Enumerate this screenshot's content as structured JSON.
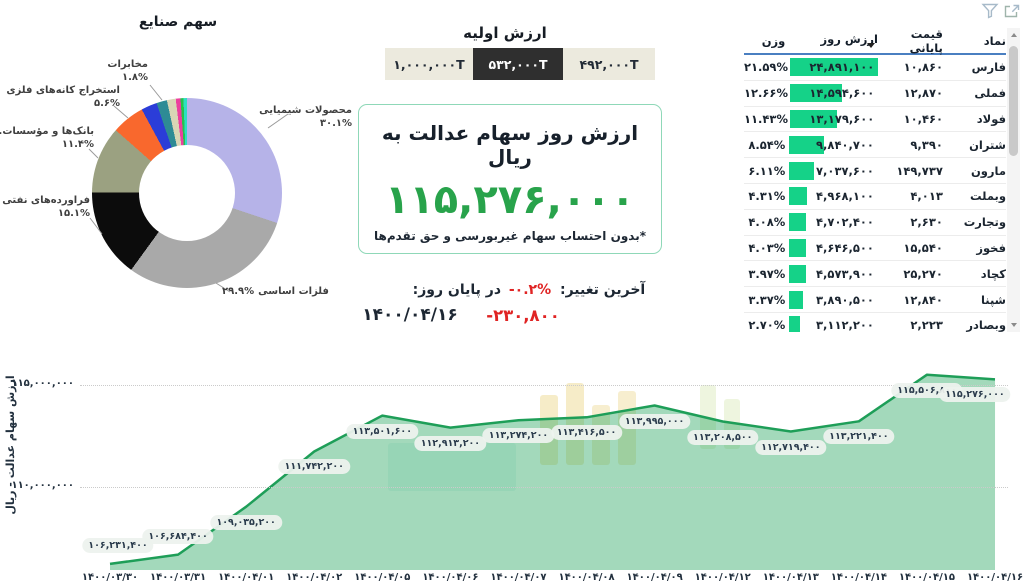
{
  "toolbar": {
    "filter_icon": "funnel",
    "expand_icon": "open-in-new"
  },
  "colors": {
    "accent_green": "#28a34b",
    "bar_green": "#15d288",
    "line_green": "#1e9e58",
    "fill_green": "rgba(36,164,94,0.42)",
    "negative_red": "#e02424",
    "selected_button_bg": "#2f2f2f",
    "header_underline_blue": "#4a7fc1"
  },
  "initial_value": {
    "title": "ارزش اولیه",
    "options": [
      {
        "label": "۱,۰۰۰,۰۰۰T",
        "selected": false
      },
      {
        "label": "۵۳۲,۰۰۰T",
        "selected": true
      },
      {
        "label": "۴۹۲,۰۰۰T",
        "selected": false
      }
    ]
  },
  "value_panel": {
    "title": "ارزش روز سهام عدالت به ریال",
    "value": "۱۱۵,۲۷۶,۰۰۰",
    "footnote": "*بدون احتساب سهام غیربورسی و حق تقدم‌ها"
  },
  "change": {
    "label": "آخرین تغییر:",
    "pct": "-۰.۲%",
    "amount": "-۲۳۰,۸۰۰",
    "day_label": "در پایان روز:",
    "date": "۱۴۰۰/۰۴/۱۶"
  },
  "table": {
    "columns": [
      "نماد",
      "قیمت پایانی",
      "ارزش روز",
      "وزن"
    ],
    "sort_icon": "sort-descending",
    "rows": [
      {
        "symbol": "فارس",
        "close": "۱۰,۸۶۰",
        "day_value": "۲۴,۸۹۱,۱۰۰",
        "weight": "۲۱.۵۹%",
        "bar": 100
      },
      {
        "symbol": "فملی",
        "close": "۱۲,۸۷۰",
        "day_value": "۱۴,۵۹۴,۶۰۰",
        "weight": "۱۲.۶۶%",
        "bar": 58.6
      },
      {
        "symbol": "فولاد",
        "close": "۱۰,۴۶۰",
        "day_value": "۱۳,۱۷۹,۶۰۰",
        "weight": "۱۱.۴۳%",
        "bar": 53
      },
      {
        "symbol": "شتران",
        "close": "۹,۳۹۰",
        "day_value": "۹,۸۴۰,۷۰۰",
        "weight": "۸.۵۴%",
        "bar": 39.5
      },
      {
        "symbol": "مارون",
        "close": "۱۴۹,۷۳۷",
        "day_value": "۷,۰۳۷,۶۰۰",
        "weight": "۶.۱۱%",
        "bar": 28.3
      },
      {
        "symbol": "وبملت",
        "close": "۴,۰۱۳",
        "day_value": "۴,۹۶۸,۱۰۰",
        "weight": "۴.۳۱%",
        "bar": 20
      },
      {
        "symbol": "وتجارت",
        "close": "۲,۶۳۰",
        "day_value": "۴,۷۰۲,۴۰۰",
        "weight": "۴.۰۸%",
        "bar": 18.9
      },
      {
        "symbol": "فخوز",
        "close": "۱۵,۵۴۰",
        "day_value": "۴,۶۴۶,۵۰۰",
        "weight": "۴.۰۳%",
        "bar": 18.7
      },
      {
        "symbol": "کچاد",
        "close": "۲۵,۲۷۰",
        "day_value": "۴,۵۷۳,۹۰۰",
        "weight": "۳.۹۷%",
        "bar": 18.4
      },
      {
        "symbol": "شپنا",
        "close": "۱۲,۸۴۰",
        "day_value": "۳,۸۹۰,۵۰۰",
        "weight": "۳.۳۷%",
        "bar": 15.6
      },
      {
        "symbol": "وبصادر",
        "close": "۲,۲۲۳",
        "day_value": "۳,۱۱۲,۲۰۰",
        "weight": "۲.۷۰%",
        "bar": 12.5
      },
      {
        "symbol": "",
        "close": "",
        "day_value": "",
        "weight": "",
        "bar": 11,
        "partial": true
      }
    ]
  },
  "chart_data": [
    {
      "type": "pie",
      "title": "سهم صنایع",
      "donut": true,
      "slices": [
        {
          "label": "محصولات شیمیایی",
          "pct_label": "۳۰.۱%",
          "value": 30.1,
          "color": "#b6b3e8"
        },
        {
          "label": "فلزات اساسی",
          "pct_label": "۲۹.۹%",
          "value": 29.9,
          "color": "#a9a9a9"
        },
        {
          "label": "فراورده‌های نفتی",
          "pct_label": "۱۵.۱%",
          "value": 15.1,
          "color": "#0c0c0c"
        },
        {
          "label": "بانک‌ها و مؤسسات...",
          "pct_label": "۱۱.۴%",
          "value": 11.4,
          "color": "#9ba181"
        },
        {
          "label": "استخراج کانه‌های فلزی",
          "pct_label": "۵.۶%",
          "value": 5.6,
          "color": "#f9682d"
        },
        {
          "label": "",
          "pct_label": "",
          "value": 2.7,
          "color": "#2b3dd8"
        },
        {
          "label": "مخابرات",
          "pct_label": "۱.۸%",
          "value": 1.8,
          "color": "#2e8b95"
        },
        {
          "label": "",
          "pct_label": "",
          "value": 1.5,
          "color": "#d9d6b5"
        },
        {
          "label": "",
          "pct_label": "",
          "value": 0.8,
          "color": "#ec3f9e"
        },
        {
          "label": "",
          "pct_label": "",
          "value": 0.5,
          "color": "#27c24c"
        },
        {
          "label": "",
          "pct_label": "",
          "value": 0.6,
          "color": "#2de0c2"
        }
      ]
    },
    {
      "type": "area",
      "ylabel": "ارزش سهام عدالت - ریال",
      "x": [
        "۱۴۰۰/۰۳/۳۰",
        "۱۴۰۰/۰۳/۳۱",
        "۱۴۰۰/۰۴/۰۱",
        "۱۴۰۰/۰۴/۰۲",
        "۱۴۰۰/۰۴/۰۵",
        "۱۴۰۰/۰۴/۰۶",
        "۱۴۰۰/۰۴/۰۷",
        "۱۴۰۰/۰۴/۰۸",
        "۱۴۰۰/۰۴/۰۹",
        "۱۴۰۰/۰۴/۱۲",
        "۱۴۰۰/۰۴/۱۳",
        "۱۴۰۰/۰۴/۱۴",
        "۱۴۰۰/۰۴/۱۵",
        "۱۴۰۰/۰۴/۱۶"
      ],
      "values": [
        106231400,
        106684400,
        109035200,
        111742200,
        113501600,
        112913200,
        113274200,
        113416500,
        113995000,
        113208500,
        112719400,
        113221400,
        115506800,
        115276000
      ],
      "point_labels": [
        "۱۰۶,۲۳۱,۴۰۰",
        "۱۰۶,۶۸۴,۴۰۰",
        "۱۰۹,۰۳۵,۲۰۰",
        "۱۱۱,۷۴۲,۲۰۰",
        "۱۱۳,۵۰۱,۶۰۰",
        "۱۱۲,۹۱۳,۲۰۰",
        "۱۱۳,۲۷۴,۲۰۰",
        "۱۱۳,۴۱۶,۵۰۰",
        "۱۱۳,۹۹۵,۰۰۰",
        "۱۱۳,۲۰۸,۵۰۰",
        "۱۱۲,۷۱۹,۴۰۰",
        "۱۱۳,۲۲۱,۴۰۰",
        "۱۱۵,۵۰۶,۸۰۰",
        "۱۱۵,۲۷۶,۰۰۰"
      ],
      "yticks": [
        {
          "v": 115000000,
          "label": "۱۱۵,۰۰۰,۰۰۰"
        },
        {
          "v": 110000000,
          "label": "۱۱۰,۰۰۰,۰۰۰"
        }
      ],
      "ylim": [
        105500000,
        116500000
      ],
      "grid": "dotted",
      "legend": "none"
    }
  ]
}
